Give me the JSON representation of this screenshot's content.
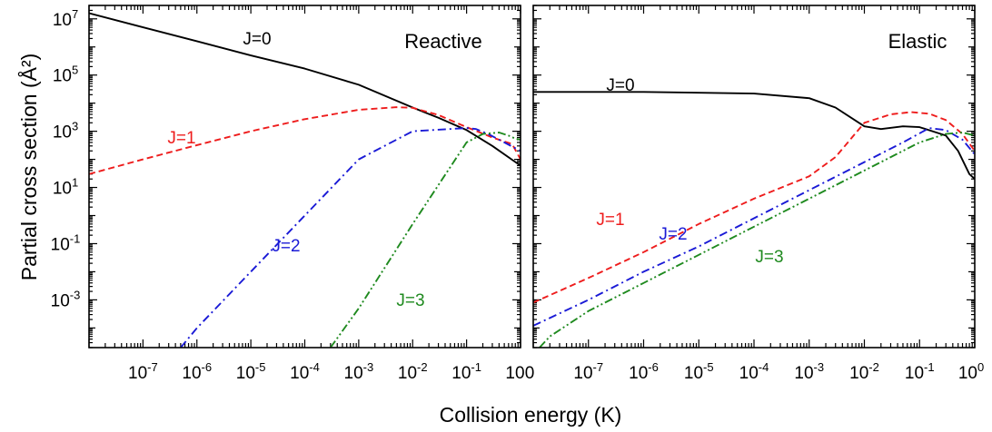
{
  "figure": {
    "xlabel": "Collision energy (K)",
    "ylabel": "Partial cross section (Å²)"
  },
  "chart_data": [
    {
      "type": "line",
      "title": "Reactive",
      "xscale": "log",
      "yscale": "log",
      "xlim": [
        1e-08,
        1
      ],
      "ylim": [
        2e-05,
        30000000.0
      ],
      "x_tick_labels": [
        "10-7",
        "10-6",
        "10-5",
        "10-4",
        "10-3",
        "10-2",
        "10-1",
        "10"
      ],
      "y_tick_labels": [
        "10-3",
        "10-1",
        "101",
        "103",
        "105",
        "107"
      ],
      "series": [
        {
          "name": "J=0",
          "color": "#000000",
          "dash": "solid",
          "x": [
            1e-08,
            1e-07,
            1e-06,
            1e-05,
            0.0001,
            0.001,
            0.01,
            0.03,
            0.1,
            0.3,
            1
          ],
          "y": [
            16000000.0,
            5000000.0,
            1600000.0,
            500000.0,
            170000.0,
            45000.0,
            7000.0,
            3000.0,
            1100.0,
            300,
            60
          ]
        },
        {
          "name": "J=1",
          "color": "#ee1c1c",
          "dash": "dash",
          "x": [
            1e-08,
            1e-07,
            1e-06,
            1e-05,
            0.0001,
            0.001,
            0.005,
            0.01,
            0.03,
            0.1,
            0.3,
            0.7,
            1
          ],
          "y": [
            30,
            100,
            320,
            1000,
            2700,
            5800,
            7200,
            6800,
            3800,
            1400,
            600,
            350,
            100
          ]
        },
        {
          "name": "J=2",
          "color": "#1a1ad6",
          "dash": "dashdot",
          "x": [
            5e-07,
            1e-06,
            1e-05,
            0.0001,
            0.001,
            0.01,
            0.1,
            0.15,
            0.25,
            0.5,
            1
          ],
          "y": [
            2e-05,
            0.0001,
            0.01,
            1,
            100,
            1000,
            1300,
            1200,
            800,
            400,
            200
          ]
        },
        {
          "name": "J=3",
          "color": "#1f8a1f",
          "dash": "dashdotdot",
          "x": [
            0.0003,
            0.001,
            0.01,
            0.1,
            0.2,
            0.4,
            0.6,
            0.8,
            1
          ],
          "y": [
            2e-05,
            0.0005,
            0.5,
            400,
            800,
            900,
            700,
            550,
            500
          ]
        }
      ],
      "annotations": [
        "J=0",
        "J=1",
        "J=2",
        "J=3"
      ]
    },
    {
      "type": "line",
      "title": "Elastic",
      "xscale": "log",
      "yscale": "log",
      "xlim": [
        1e-08,
        1
      ],
      "ylim": [
        2e-05,
        30000000.0
      ],
      "x_tick_labels": [
        "0",
        "10-7",
        "10-6",
        "10-5",
        "10-4",
        "10-3",
        "10-2",
        "10-1",
        "100"
      ],
      "series": [
        {
          "name": "J=0",
          "color": "#000000",
          "dash": "solid",
          "x": [
            1e-08,
            1e-06,
            0.0001,
            0.001,
            0.003,
            0.01,
            0.02,
            0.05,
            0.1,
            0.3,
            0.5,
            0.8,
            1
          ],
          "y": [
            25000.0,
            25000.0,
            22000.0,
            15000.0,
            7000,
            1500,
            1200,
            1500,
            1400,
            700,
            200,
            30,
            20
          ]
        },
        {
          "name": "J=1",
          "color": "#ee1c1c",
          "dash": "dash",
          "x": [
            1e-08,
            1e-07,
            1e-06,
            1e-05,
            0.0001,
            0.001,
            0.003,
            0.01,
            0.03,
            0.07,
            0.15,
            0.3,
            0.6,
            1
          ],
          "y": [
            0.0008,
            0.006,
            0.05,
            0.5,
            4,
            25,
            120,
            2000,
            4000,
            4800,
            4200,
            2500,
            800,
            200
          ]
        },
        {
          "name": "J=2",
          "color": "#1a1ad6",
          "dash": "dashdot",
          "x": [
            1e-08,
            1e-07,
            1e-06,
            1e-05,
            0.0001,
            0.001,
            0.01,
            0.05,
            0.15,
            0.3,
            0.6,
            1
          ],
          "y": [
            0.00012,
            0.001,
            0.01,
            0.08,
            0.8,
            8,
            80,
            400,
            1300,
            1100,
            500,
            150
          ]
        },
        {
          "name": "J=3",
          "color": "#1f8a1f",
          "dash": "dashdotdot",
          "x": [
            1.3e-08,
            2e-08,
            1e-07,
            1e-06,
            1e-05,
            0.0001,
            0.001,
            0.01,
            0.1,
            0.3,
            0.6,
            1
          ],
          "y": [
            2e-05,
            5e-05,
            0.0004,
            0.004,
            0.04,
            0.4,
            4,
            40,
            400,
            800,
            900,
            700
          ]
        }
      ],
      "annotations": [
        "J=0",
        "J=1",
        "J=2",
        "J=3"
      ]
    }
  ]
}
